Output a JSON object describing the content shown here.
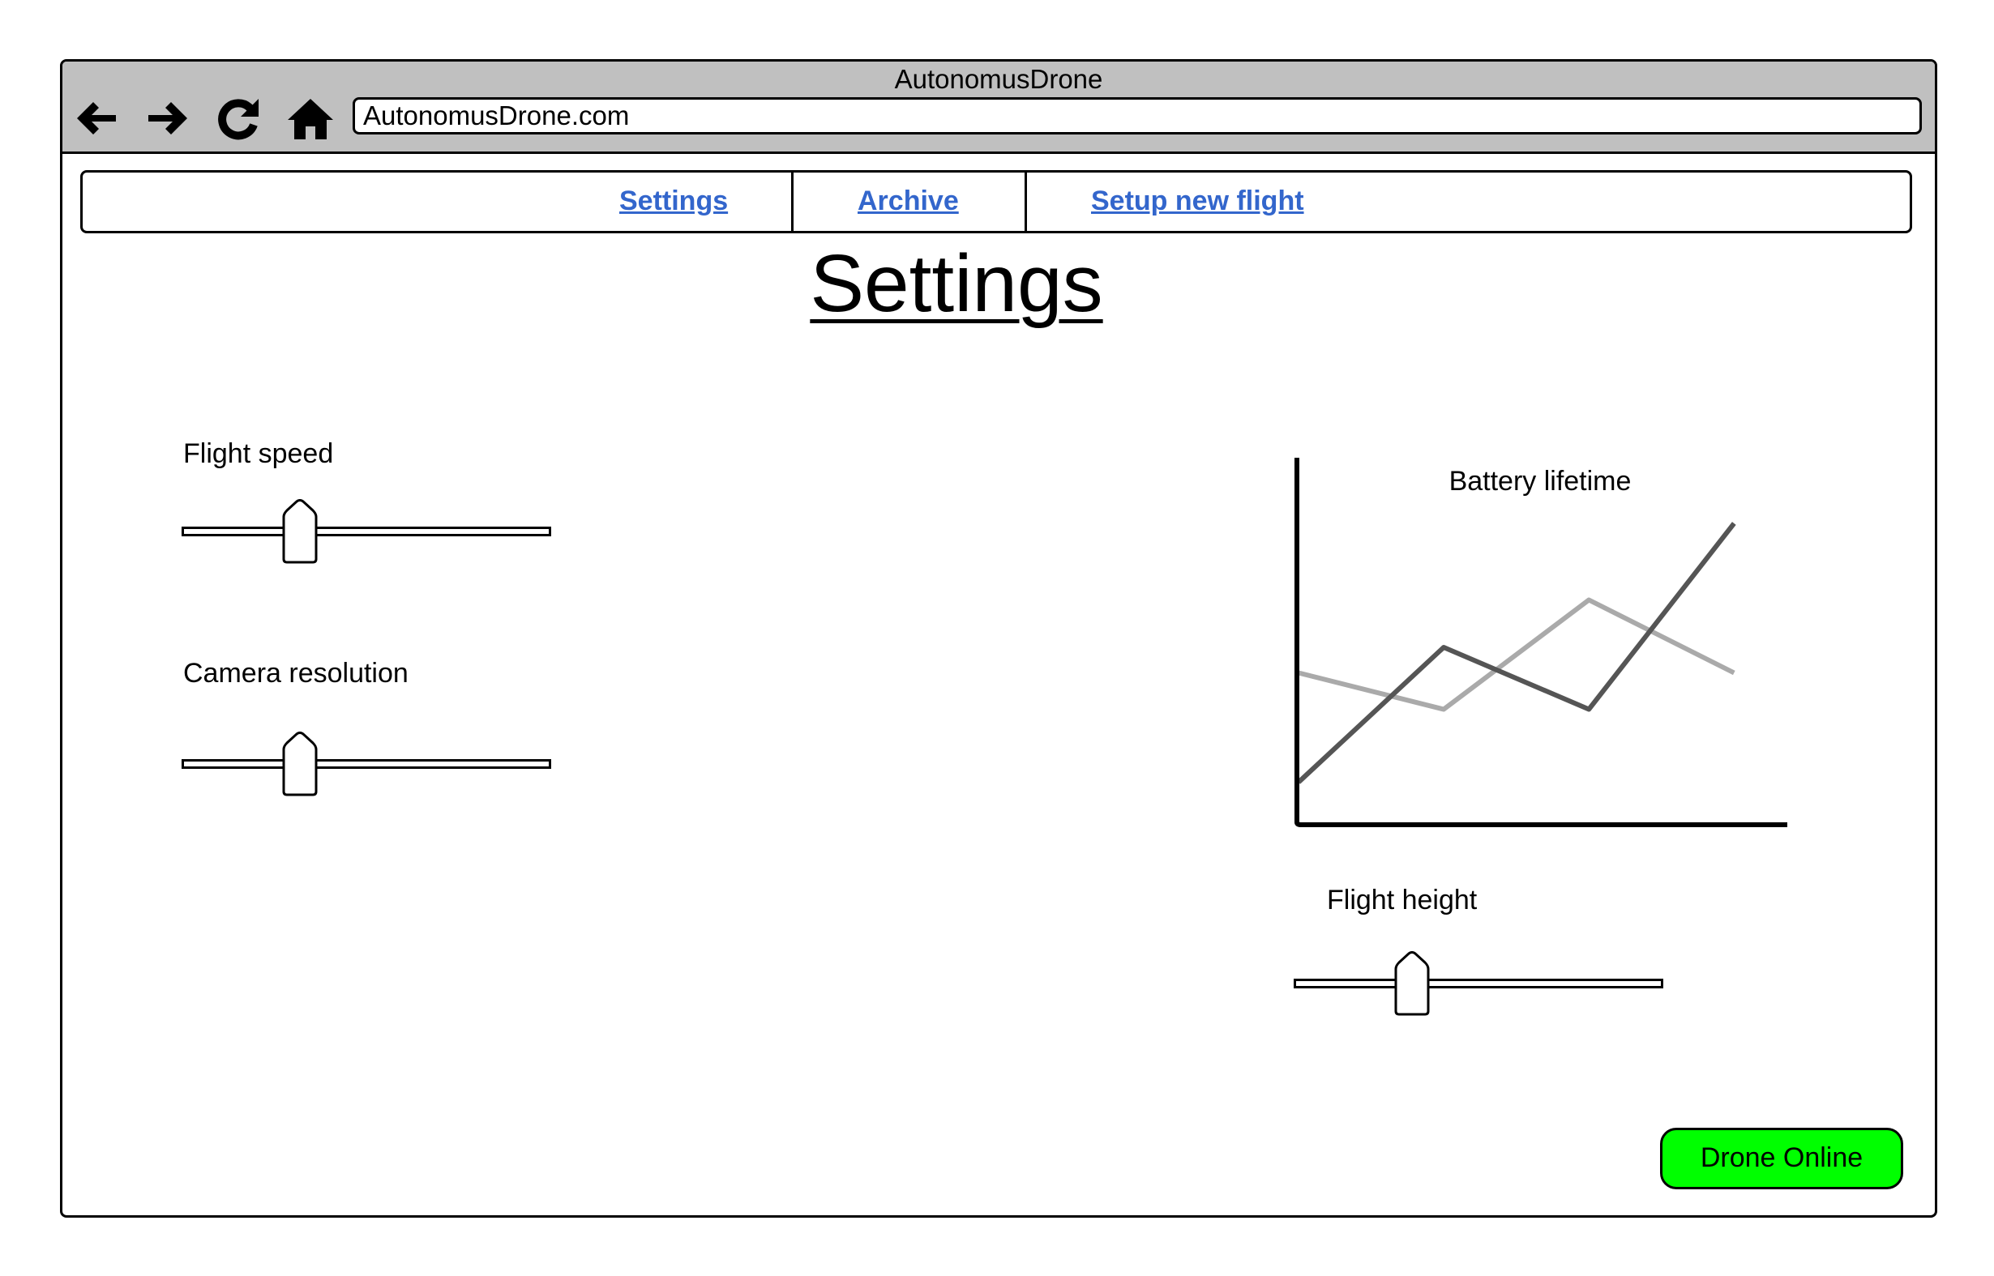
{
  "browser": {
    "window_title": "AutonomusDrone",
    "url": "AutonomusDrone.com",
    "nav_icons": [
      "back-arrow-icon",
      "forward-arrow-icon",
      "reload-icon",
      "home-icon"
    ]
  },
  "navbar": {
    "items": [
      {
        "label": "Settings"
      },
      {
        "label": "Archive"
      },
      {
        "label": "Setup new flight"
      }
    ],
    "link_color": "#3366cc"
  },
  "main": {
    "title": "Settings",
    "sliders": [
      {
        "label": "Flight speed",
        "value": 0.32
      },
      {
        "label": "Camera resolution",
        "value": 0.32
      },
      {
        "label": "Flight height",
        "value": 0.32
      }
    ],
    "chart_title": "Battery lifetime",
    "status_button": {
      "label": "Drone Online",
      "color": "#00ff00"
    }
  },
  "chart_data": {
    "type": "line",
    "title": "Battery lifetime",
    "xlabel": "",
    "ylabel": "",
    "grid": false,
    "x": [
      0,
      1,
      2,
      3
    ],
    "series": [
      {
        "values": [
          1.1,
          4.8,
          3.1,
          8.2
        ],
        "color": "#555555"
      },
      {
        "values": [
          4.1,
          3.1,
          6.1,
          4.1
        ],
        "color": "#aaaaaa"
      }
    ],
    "xlim": [
      0,
      3.35
    ],
    "ylim": [
      0,
      10
    ]
  }
}
